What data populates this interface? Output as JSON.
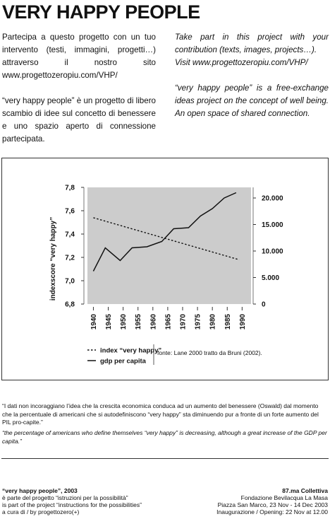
{
  "title": "VERY HAPPY PEOPLE",
  "intro_it": {
    "p1": "Partecipa a questo progetto con un tuo intervento (testi, immagini, progetti…) attraverso il nostro sito www.progettozeropiu.com/VHP/",
    "p2": "“very happy people” è un progetto di libero scambio di idee sul concetto di benessere e uno spazio aperto di connessione partecipata."
  },
  "intro_en": {
    "p1": "Take part in this project with your contribution (texts, images, projects…).",
    "p1b": "Visit www.progettozeropiu.com/VHP/",
    "p2": "“very happy people” is a free-exchange ideas project on the concept of well being. An open space of shared connection."
  },
  "chart_data": {
    "type": "line",
    "x": [
      1940,
      1945,
      1950,
      1955,
      1960,
      1965,
      1970,
      1975,
      1980,
      1985,
      1990
    ],
    "x_tick_labels": [
      "1940",
      "1945",
      "1950",
      "1955",
      "1960",
      "1965",
      "1970",
      "1975",
      "1980",
      "1985",
      "1990"
    ],
    "ylabel": "indexscore “very happy”",
    "ylim": [
      6.8,
      7.8
    ],
    "y_ticks": [
      "7,8",
      "7,6",
      "7,4",
      "7,2",
      "7,0",
      "6,8"
    ],
    "y2lim": [
      0,
      22000
    ],
    "y2_ticks": [
      "20.000",
      "15.000",
      "10.000",
      "5.000",
      "0"
    ],
    "series": [
      {
        "name": "index “very happy”",
        "axis": "left",
        "style": "dashed",
        "x": [
          1940,
          1989
        ],
        "values": [
          7.54,
          7.18
        ]
      },
      {
        "name": "gdp per capita",
        "axis": "right",
        "style": "solid",
        "x": [
          1940,
          1944,
          1949,
          1953,
          1958,
          1963,
          1967,
          1972,
          1976,
          1980,
          1984,
          1988
        ],
        "values": [
          6200,
          10600,
          8200,
          10600,
          10800,
          11800,
          14200,
          14400,
          16600,
          18000,
          20000,
          21000
        ]
      }
    ],
    "source": "fonte: Lane 2000 tratto da Bruni (2002).",
    "grid": false,
    "plot_background": "#cccccc",
    "legend_position": "bottom"
  },
  "notes": {
    "it": "“I dati non incoraggiano l’idea che la crescita economica conduca ad un aumento del benessere (Oswald) dal momento che la percentuale di americani che si autodefiniscono “very happy” sta diminuendo pur a fronte di un forte aumento del PIL pro-capite.”",
    "en": "“the percentage of americans who define themselves “very happy” is decreasing, although a great increase of the GDP per capita.”"
  },
  "footer": {
    "left": {
      "title": "“very happy people”, 2003",
      "line1": "è parte del progetto “istruzioni  per la possibilità”",
      "line2": "is part of the project “instructions for the possibilities”",
      "line3": "a cura di / by progettozero(+)"
    },
    "right": {
      "title": "87.ma Collettiva",
      "line1": "Fondazione Bevilacqua La Masa",
      "line2": "Piazza San Marco, 23 Nov - 14 Dec 2003",
      "line3": "Inaugurazione / Opening: 22 Nov at 12.00"
    }
  }
}
